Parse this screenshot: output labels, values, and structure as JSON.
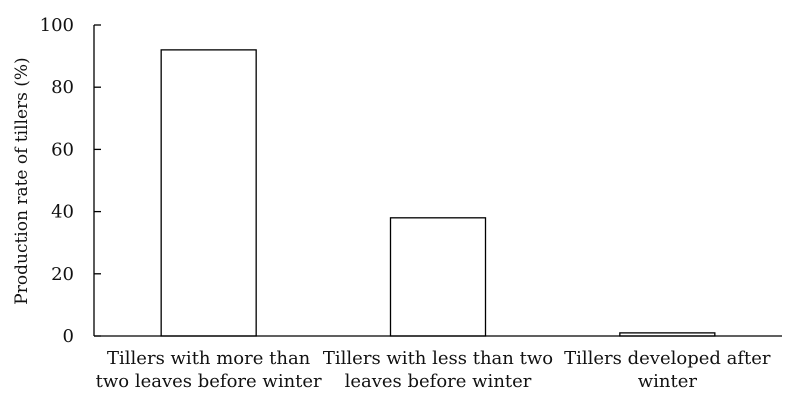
{
  "chart_data": {
    "type": "bar",
    "categories": [
      [
        "Tillers with more than",
        "two leaves before winter"
      ],
      [
        "Tillers with less than two",
        "leaves before winter"
      ],
      [
        "Tillers developed after",
        "winter"
      ]
    ],
    "values": [
      92,
      38,
      1
    ],
    "title": "",
    "xlabel": "",
    "ylabel": "Production rate of tillers (%)",
    "ylim": [
      0,
      100
    ],
    "yticks": [
      0,
      20,
      40,
      60,
      80,
      100
    ],
    "grid": false,
    "bar_fill": "#ffffff",
    "bar_stroke": "#000000",
    "axis_color": "#000000"
  }
}
